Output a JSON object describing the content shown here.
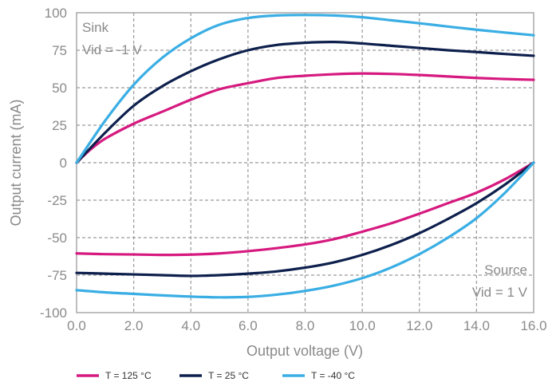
{
  "chart_data": {
    "type": "line",
    "xlabel": "Output voltage (V)",
    "ylabel": "Output current (mA)",
    "xlim": [
      0,
      16
    ],
    "ylim": [
      -100,
      100
    ],
    "x_ticks": [
      0,
      2,
      4,
      6,
      8,
      10,
      12,
      14,
      16
    ],
    "x_tick_labels": [
      "0.0",
      "2.0",
      "4.0",
      "6.0",
      "8.0",
      "10.0",
      "12.0",
      "14.0",
      "16.0"
    ],
    "y_ticks": [
      100,
      75,
      50,
      25,
      0,
      -25,
      -50,
      -75,
      -100
    ],
    "y_tick_labels": [
      "100",
      "75",
      "50",
      "25",
      "0",
      "-25",
      "-50",
      "-75",
      "-100"
    ],
    "grid": true,
    "legend_position": "bottom-left",
    "annotations": [
      {
        "lines": [
          "Sink",
          "Vid = -1 V"
        ],
        "position": "top-left"
      },
      {
        "lines": [
          "Source",
          "Vid = 1 V"
        ],
        "position": "bottom-right"
      }
    ],
    "series": [
      {
        "name": "T = 125 °C",
        "color": "#d6197f",
        "segments": [
          {
            "label": "sink",
            "points": [
              [
                0,
                0
              ],
              [
                0.5,
                9
              ],
              [
                1,
                16
              ],
              [
                2,
                26
              ],
              [
                3,
                34
              ],
              [
                4,
                42
              ],
              [
                5,
                49
              ],
              [
                6,
                53
              ],
              [
                7,
                56.5
              ],
              [
                8,
                58
              ],
              [
                9,
                59
              ],
              [
                10,
                59.5
              ],
              [
                11,
                59.2
              ],
              [
                12,
                58.5
              ],
              [
                13,
                57.5
              ],
              [
                14,
                56.5
              ],
              [
                15,
                55.8
              ],
              [
                16,
                55.3
              ]
            ]
          },
          {
            "label": "source",
            "points": [
              [
                0,
                -60.5
              ],
              [
                1,
                -61
              ],
              [
                2,
                -61.2
              ],
              [
                3,
                -61.5
              ],
              [
                4,
                -61.3
              ],
              [
                5,
                -60.5
              ],
              [
                6,
                -59
              ],
              [
                7,
                -57
              ],
              [
                8,
                -54.5
              ],
              [
                9,
                -51
              ],
              [
                10,
                -46
              ],
              [
                11,
                -40.5
              ],
              [
                12,
                -34
              ],
              [
                13,
                -27
              ],
              [
                14,
                -20
              ],
              [
                15,
                -11
              ],
              [
                16,
                0
              ]
            ]
          }
        ]
      },
      {
        "name": "T = 25 °C",
        "color": "#0d1f4c",
        "segments": [
          {
            "label": "sink",
            "points": [
              [
                0,
                0
              ],
              [
                1,
                20
              ],
              [
                2,
                38
              ],
              [
                3,
                51
              ],
              [
                4,
                61
              ],
              [
                5,
                69
              ],
              [
                6,
                75
              ],
              [
                7,
                78.5
              ],
              [
                8,
                80
              ],
              [
                9,
                80.5
              ],
              [
                10,
                79.5
              ],
              [
                11,
                78
              ],
              [
                12,
                76.5
              ],
              [
                13,
                75
              ],
              [
                14,
                73.8
              ],
              [
                15,
                72.5
              ],
              [
                16,
                71.3
              ]
            ]
          },
          {
            "label": "source",
            "points": [
              [
                0,
                -73.5
              ],
              [
                1,
                -74
              ],
              [
                2,
                -74.5
              ],
              [
                3,
                -75
              ],
              [
                4,
                -75.5
              ],
              [
                5,
                -75
              ],
              [
                6,
                -74
              ],
              [
                7,
                -72.5
              ],
              [
                8,
                -70
              ],
              [
                9,
                -66.5
              ],
              [
                10,
                -61.5
              ],
              [
                11,
                -55
              ],
              [
                12,
                -47
              ],
              [
                13,
                -37.5
              ],
              [
                14,
                -27
              ],
              [
                15,
                -14.5
              ],
              [
                16,
                0
              ]
            ]
          }
        ]
      },
      {
        "name": "T = -40 °C",
        "color": "#3aaee4",
        "segments": [
          {
            "label": "sink",
            "points": [
              [
                0,
                0
              ],
              [
                1,
                28
              ],
              [
                2,
                52
              ],
              [
                3,
                70
              ],
              [
                4,
                83
              ],
              [
                5,
                92
              ],
              [
                6,
                96.5
              ],
              [
                7,
                98.2
              ],
              [
                8,
                98.5
              ],
              [
                9,
                98.2
              ],
              [
                10,
                97
              ],
              [
                11,
                95
              ],
              [
                12,
                93
              ],
              [
                13,
                90.8
              ],
              [
                14,
                88.7
              ],
              [
                15,
                86.8
              ],
              [
                16,
                85
              ]
            ]
          },
          {
            "label": "source",
            "points": [
              [
                0,
                -85
              ],
              [
                1,
                -86.5
              ],
              [
                2,
                -87.5
              ],
              [
                3,
                -88.5
              ],
              [
                4,
                -89.3
              ],
              [
                5,
                -89.8
              ],
              [
                6,
                -89.5
              ],
              [
                7,
                -88
              ],
              [
                8,
                -85.5
              ],
              [
                9,
                -82
              ],
              [
                10,
                -77
              ],
              [
                11,
                -70
              ],
              [
                12,
                -61
              ],
              [
                13,
                -50
              ],
              [
                14,
                -37
              ],
              [
                15,
                -20
              ],
              [
                16,
                0
              ]
            ]
          }
        ]
      }
    ]
  }
}
